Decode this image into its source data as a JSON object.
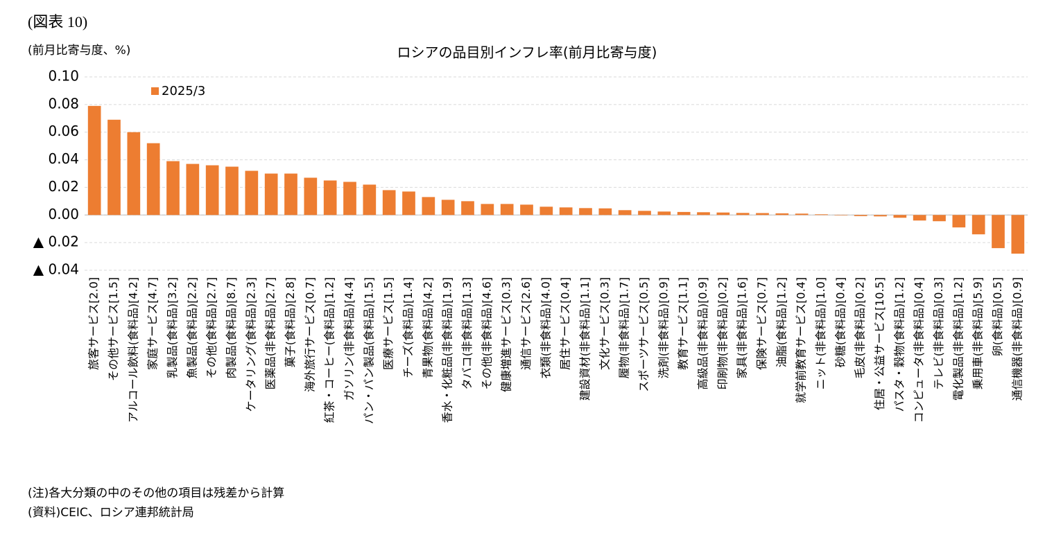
{
  "figure_label": "(図表 10)",
  "notes": [
    "(注)各大分類の中のその他の項目は残差から計算",
    "(資料)CEIC、ロシア連邦統計局"
  ],
  "chart_data": {
    "type": "bar",
    "title": "ロシアの品目別インフレ率(前月比寄与度)",
    "y_label": "(前月比寄与度、%)",
    "categories": [
      "旅客サービス[2.0]",
      "その他サービス[1.5]",
      "アルコール飲料(食料品)[4.2]",
      "家庭サービス[4.7]",
      "乳製品(食料品)[3.2]",
      "魚製品(食料品)[2.2]",
      "その他(食料品)[2.7]",
      "肉製品(食料品)[8.7]",
      "ケータリング(食料品)[2.3]",
      "医薬品(非食料品)[2.7]",
      "菓子(食料品)[2.8]",
      "海外旅行サービス[0.7]",
      "紅茶・コーヒー(食料品)[1.2]",
      "ガソリン(非食料品)[4.4]",
      "パン・パン製品(食料品)[1.5]",
      "医療サービス[1.5]",
      "チーズ(食料品)[1.4]",
      "青果物(食料品)[4.2]",
      "香水・化粧品(非食料品)[1.9]",
      "タバコ(非食料品)[1.3]",
      "その他(非食料品)[4.6]",
      "健康増進サービス[0.3]",
      "通信サービス[2.6]",
      "衣類(非食料品)[4.0]",
      "居住サービス[0.4]",
      "建設資材(非食料品)[1.1]",
      "文化サービス[0.3]",
      "履物(非食料品)[1.7]",
      "スポーツサービス[0.5]",
      "洗剤(非食料品)[0.9]",
      "教育サービス[1.1]",
      "高級品(非食料品)[0.9]",
      "印刷物(非食料品)[0.2]",
      "家具(非食料品)[1.6]",
      "保険サービス[0.7]",
      "油脂(食料品)[1.2]",
      "就学前教育サービス[0.4]",
      "ニット(非食料品)[1.0]",
      "砂糖(食料品)[0.4]",
      "毛皮(非食料品)[0.2]",
      "住居・公益サービス[10.5]",
      "パスタ・穀物(食料品)[1.2]",
      "コンピュータ(非食料品)[0.4]",
      "テレビ(非食料品)[0.3]",
      "電化製品(非食料品)[1.2]",
      "乗用車(非食料品)[5.9]",
      "卵(食料品)[0.5]",
      "通信機器(非食料品)[0.9]"
    ],
    "series": [
      {
        "name": "2025/3",
        "color": "#ed7d31",
        "values": [
          0.079,
          0.069,
          0.06,
          0.052,
          0.039,
          0.037,
          0.036,
          0.035,
          0.032,
          0.03,
          0.03,
          0.027,
          0.025,
          0.024,
          0.022,
          0.018,
          0.017,
          0.013,
          0.011,
          0.01,
          0.008,
          0.008,
          0.0075,
          0.006,
          0.0055,
          0.005,
          0.0048,
          0.0035,
          0.003,
          0.0025,
          0.0022,
          0.002,
          0.0018,
          0.0015,
          0.0014,
          0.0012,
          0.001,
          0.0005,
          -0.0003,
          -0.0008,
          -0.001,
          -0.002,
          -0.004,
          -0.0045,
          -0.009,
          -0.014,
          -0.024,
          -0.028
        ]
      }
    ],
    "ylim": [
      -0.04,
      0.1
    ],
    "yticks": [
      {
        "value": 0.1,
        "label": "0.10"
      },
      {
        "value": 0.08,
        "label": "0.08"
      },
      {
        "value": 0.06,
        "label": "0.06"
      },
      {
        "value": 0.04,
        "label": "0.04"
      },
      {
        "value": 0.02,
        "label": "0.02"
      },
      {
        "value": 0,
        "label": "0.00"
      },
      {
        "value": -0.02,
        "label": "▲ 0.02"
      },
      {
        "value": -0.04,
        "label": "▲ 0.04"
      }
    ],
    "grid": true,
    "legend": "top-left"
  }
}
